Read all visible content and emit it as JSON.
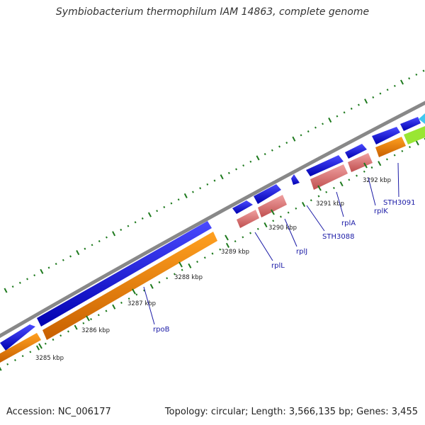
{
  "title": "Symbiobacterium thermophilum IAM 14863, complete genome",
  "accession": "Accession: NC_006177",
  "summary": "Topology: circular; Length: 3,566,135 bp; Genes: 3,455",
  "colors": {
    "backbone": "#888888",
    "plus_strand_gene": "#1a1ae6",
    "cds": "#ff8c00",
    "rrna_rna": "#e88080",
    "other_feature": "#99e633",
    "misc": "#40c8f0",
    "tick": "#1e7a1e",
    "label": "#1a1aa6"
  },
  "kbp_ticks": [
    "3285 kbp",
    "3286 kbp",
    "3287 kbp",
    "3288 kbp",
    "3289 kbp",
    "3290 kbp",
    "3291 kbp",
    "3292 kbp"
  ],
  "gene_labels": [
    "rpoB",
    "rplL",
    "rplJ",
    "STH3088",
    "rplA",
    "rplK",
    "STH3091"
  ]
}
